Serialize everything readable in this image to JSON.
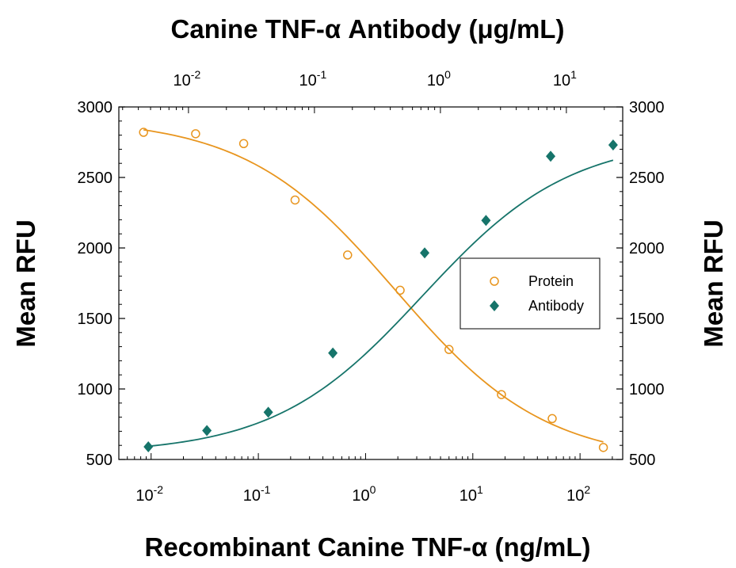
{
  "chart_data": {
    "type": "scatter",
    "title": "Canine TNF-α Antibody (μg/mL)",
    "xlabel": "Recombinant Canine TNF-α (ng/mL)",
    "ylabel": "Mean RFU",
    "y2label": "Mean RFU",
    "xscale": "log",
    "xlim": [
      0.005,
      250
    ],
    "ylim": [
      500,
      3000
    ],
    "yticks": [
      500,
      1000,
      1500,
      2000,
      2500,
      3000
    ],
    "xticks_bottom": [
      {
        "value": 0.01,
        "base": "10",
        "exp": "-2"
      },
      {
        "value": 0.1,
        "base": "10",
        "exp": "-1"
      },
      {
        "value": 1,
        "base": "10",
        "exp": "0"
      },
      {
        "value": 10,
        "base": "10",
        "exp": "1"
      },
      {
        "value": 100,
        "base": "10",
        "exp": "2"
      }
    ],
    "top_axis": {
      "xlim": [
        0.0028,
        28
      ],
      "ticks": [
        {
          "value": 0.01,
          "base": "10",
          "exp": "-2"
        },
        {
          "value": 0.1,
          "base": "10",
          "exp": "-1"
        },
        {
          "value": 1,
          "base": "10",
          "exp": "0"
        },
        {
          "value": 10,
          "base": "10",
          "exp": "1"
        }
      ]
    },
    "legend": {
      "position": "right"
    },
    "series": [
      {
        "name": "Protein",
        "color": "#e8951e",
        "marker": "open-circle",
        "axis": "bottom",
        "x": [
          0.0085,
          0.026,
          0.073,
          0.22,
          0.68,
          2.1,
          6.0,
          18.5,
          55,
          165
        ],
        "y": [
          2820,
          2810,
          2740,
          2340,
          1950,
          1700,
          1280,
          960,
          790,
          585
        ],
        "fit": {
          "top": 2920,
          "bottom": 480,
          "ec50": 1.9,
          "hill": 0.62
        }
      },
      {
        "name": "Antibody",
        "color": "#16746a",
        "marker": "filled-diamond",
        "axis": "top",
        "x": [
          0.0048,
          0.014,
          0.043,
          0.14,
          0.75,
          2.3,
          7.5,
          23.5
        ],
        "y": [
          590,
          705,
          835,
          1255,
          1965,
          2195,
          2650,
          2730
        ],
        "fit": {
          "top": 2780,
          "bottom": 540,
          "ec50": 0.72,
          "hill": 0.74
        }
      }
    ]
  }
}
